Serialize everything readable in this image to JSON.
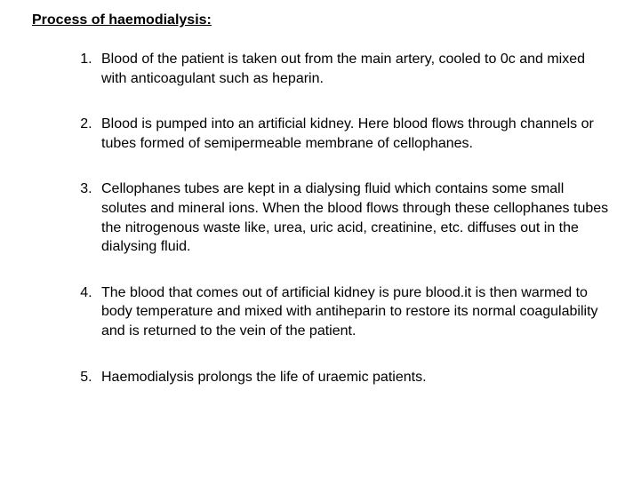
{
  "document": {
    "heading": "Process of haemodialysis:",
    "steps": [
      "Blood of the patient is taken out from the main artery, cooled to 0c and mixed with anticoagulant such as heparin.",
      "Blood is pumped into an artificial kidney. Here blood flows through channels or tubes formed of semipermeable membrane of cellophanes.",
      "Cellophanes tubes are kept in a dialysing fluid which contains some small solutes and mineral ions. When the blood flows through these cellophanes tubes the nitrogenous waste like, urea, uric acid, creatinine, etc. diffuses out in the dialysing fluid.",
      "The blood that comes out of artificial kidney is pure blood.it is then warmed to body temperature and mixed with antiheparin to restore its normal coagulability and is returned to the vein of the patient.",
      "Haemodialysis prolongs the life of uraemic patients."
    ],
    "text_color": "#000000",
    "background_color": "#ffffff",
    "heading_fontsize": 16,
    "body_fontsize": 16,
    "font_family": "Arial"
  }
}
